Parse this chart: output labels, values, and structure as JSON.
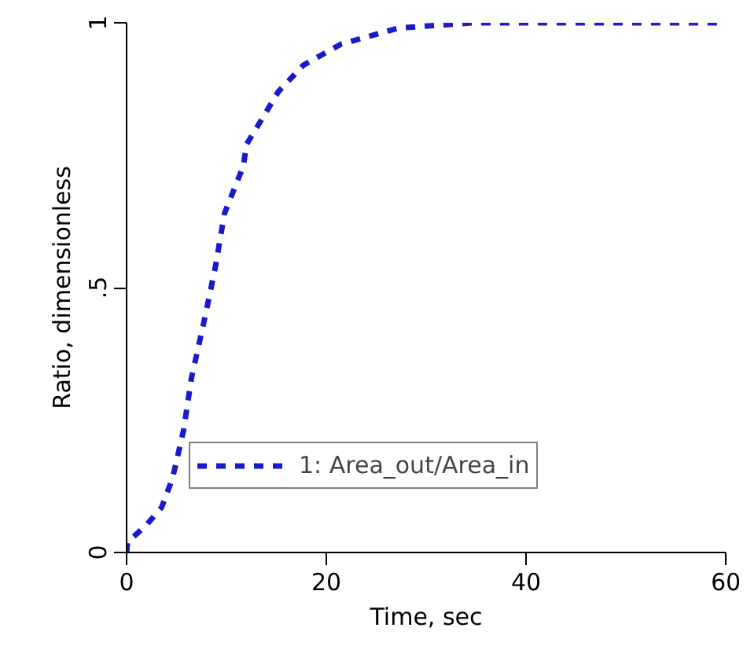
{
  "chart_data": {
    "type": "line",
    "xlabel": "Time, sec",
    "ylabel": "Ratio, dimensionless",
    "xlim": [
      0,
      60
    ],
    "ylim": [
      0,
      1
    ],
    "xticks": [
      0,
      20,
      40,
      60
    ],
    "yticks": [
      0,
      {
        "value": 0.5,
        "label": ".5"
      },
      1
    ],
    "grid": false,
    "legend": "bottom left",
    "line_style": "dashed",
    "series": [
      {
        "name": "1: Area_out/Area_in",
        "color": "#1a1acc",
        "x": [
          0,
          0.1,
          1.9,
          3.5,
          4.6,
          5.7,
          6.5,
          7.8,
          8.9,
          9.8,
          11.7,
          12,
          13.6,
          15.2,
          17.7,
          21.5,
          27.2,
          34.7,
          60
        ],
        "values": [
          0,
          0.02,
          0.05,
          0.085,
          0.14,
          0.23,
          0.33,
          0.44,
          0.54,
          0.64,
          0.73,
          0.77,
          0.82,
          0.87,
          0.92,
          0.96,
          0.99,
          1.0,
          1.0
        ]
      }
    ]
  }
}
